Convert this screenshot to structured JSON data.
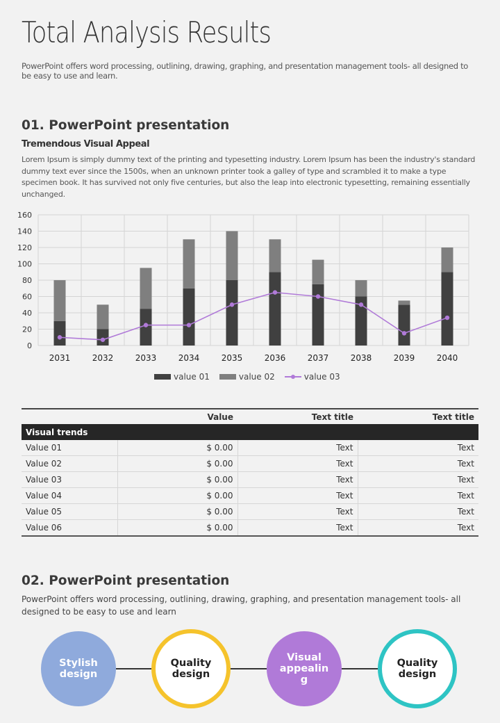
{
  "header": {
    "title": "Total Analysis Results",
    "subtitle": "PowerPoint offers word processing, outlining, drawing, graphing, and presentation management tools- all designed to be easy to use and learn."
  },
  "section1": {
    "heading": "01. PowerPoint presentation",
    "subheading": "Tremendous Visual Appeal",
    "paragraph": "Lorem Ipsum is simply dummy text of the printing and typesetting industry. Lorem Ipsum has been the industry's standard dummy text ever since the 1500s, when an unknown printer took a galley of type and scrambled it to make a type specimen book. It has survived not only five centuries, but also the leap into electronic typesetting, remaining essentially unchanged."
  },
  "chart_data": {
    "type": "bar",
    "stacked": true,
    "categories": [
      "2031",
      "2032",
      "2033",
      "2034",
      "2035",
      "2036",
      "2037",
      "2038",
      "2039",
      "2040"
    ],
    "series": [
      {
        "name": "value 01",
        "type": "bar",
        "color": "#404040",
        "values": [
          30,
          20,
          45,
          70,
          80,
          90,
          75,
          60,
          50,
          90
        ]
      },
      {
        "name": "value 02",
        "type": "bar",
        "color": "#7f7f7f",
        "values": [
          50,
          30,
          50,
          60,
          60,
          40,
          30,
          20,
          5,
          30
        ]
      },
      {
        "name": "value 03",
        "type": "line",
        "color": "#b07ad8",
        "values": [
          10,
          7,
          25,
          25,
          50,
          65,
          60,
          50,
          15,
          34
        ]
      }
    ],
    "ylim": [
      0,
      160
    ],
    "yticks": [
      0,
      20,
      40,
      60,
      80,
      100,
      120,
      140,
      160
    ],
    "grid": true,
    "legend": "bottom"
  },
  "table": {
    "headers": [
      "",
      "Value",
      "Text title",
      "Text title"
    ],
    "group": "Visual trends",
    "rows": [
      [
        "Value 01",
        "$ 0.00",
        "Text",
        "Text"
      ],
      [
        "Value 02",
        "$ 0.00",
        "Text",
        "Text"
      ],
      [
        "Value 03",
        "$ 0.00",
        "Text",
        "Text"
      ],
      [
        "Value 04",
        "$ 0.00",
        "Text",
        "Text"
      ],
      [
        "Value 05",
        "$ 0.00",
        "Text",
        "Text"
      ],
      [
        "Value 06",
        "$ 0.00",
        "Text",
        "Text"
      ]
    ]
  },
  "section2": {
    "heading": "02. PowerPoint presentation",
    "paragraph": "PowerPoint offers word processing, outlining, drawing, graphing, and presentation management tools- all designed to be easy to use and learn",
    "circles": [
      {
        "label": "Stylish design",
        "lines": [
          "Stylish",
          "design"
        ],
        "fill": "#8faadc",
        "border": "#8faadc",
        "text": "#ffffff"
      },
      {
        "label": "Quality design",
        "lines": [
          "Quality",
          "design"
        ],
        "fill": "#ffffff",
        "border": "#f5c32c",
        "text": "#222222"
      },
      {
        "label": "Visual appealing",
        "lines": [
          "Visual",
          "appealin",
          "g"
        ],
        "fill": "#b07ad8",
        "border": "#b07ad8",
        "text": "#ffffff"
      },
      {
        "label": "Quality design",
        "lines": [
          "Quality",
          "design"
        ],
        "fill": "#ffffff",
        "border": "#2ec4c4",
        "text": "#222222"
      }
    ]
  }
}
